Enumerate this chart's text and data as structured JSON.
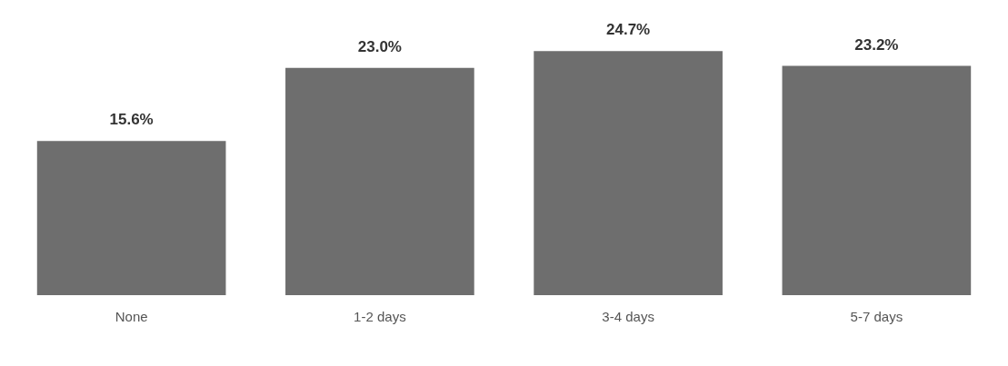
{
  "chart_data": {
    "type": "bar",
    "categories": [
      "None",
      "1-2 days",
      "3-4 days",
      "5-7 days"
    ],
    "values": [
      15.6,
      23.0,
      24.7,
      23.2
    ],
    "value_labels": [
      "15.6%",
      "23.0%",
      "24.7%",
      "23.2%"
    ],
    "color": "#6e6e6e",
    "grid": false,
    "legend": false
  }
}
